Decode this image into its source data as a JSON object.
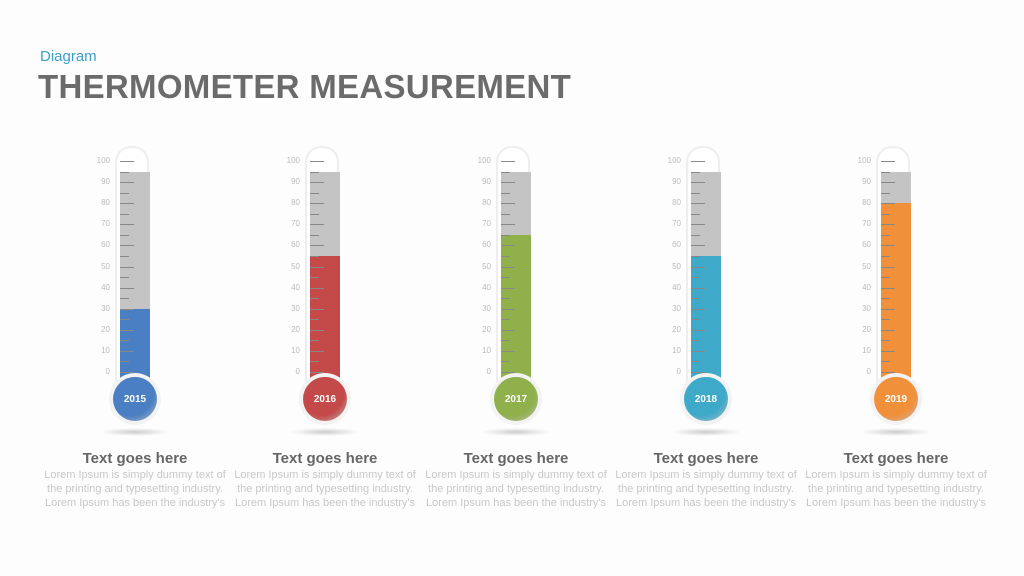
{
  "header": {
    "subtitle": "Diagram",
    "title": "THERMOMETER MEASUREMENT"
  },
  "scale": {
    "min": 0,
    "max": 100,
    "labels": [
      "100",
      "90",
      "80",
      "70",
      "60",
      "50",
      "40",
      "30",
      "20",
      "10",
      "0"
    ]
  },
  "thermometers": [
    {
      "year": "2015",
      "value": 30,
      "color": "#4a7fc4",
      "heading": "Text goes here",
      "body": "Lorem Ipsum is simply dummy text of the printing and typesetting industry. Lorem Ipsum has been the industry's"
    },
    {
      "year": "2016",
      "value": 55,
      "color": "#c44a4a",
      "heading": "Text goes here",
      "body": "Lorem Ipsum is simply dummy text of the printing and typesetting industry. Lorem Ipsum has been the industry's"
    },
    {
      "year": "2017",
      "value": 65,
      "color": "#8fb04a",
      "heading": "Text goes here",
      "body": "Lorem Ipsum is simply dummy text of the printing and typesetting industry. Lorem Ipsum has been the industry's"
    },
    {
      "year": "2018",
      "value": 55,
      "color": "#3fa9c9",
      "heading": "Text goes here",
      "body": "Lorem Ipsum is simply dummy text of the printing and typesetting industry. Lorem Ipsum has been the industry's"
    },
    {
      "year": "2019",
      "value": 80,
      "color": "#f0903a",
      "heading": "Text goes here",
      "body": "Lorem Ipsum is simply dummy text of the printing and typesetting industry. Lorem Ipsum has been the industry's"
    }
  ]
}
